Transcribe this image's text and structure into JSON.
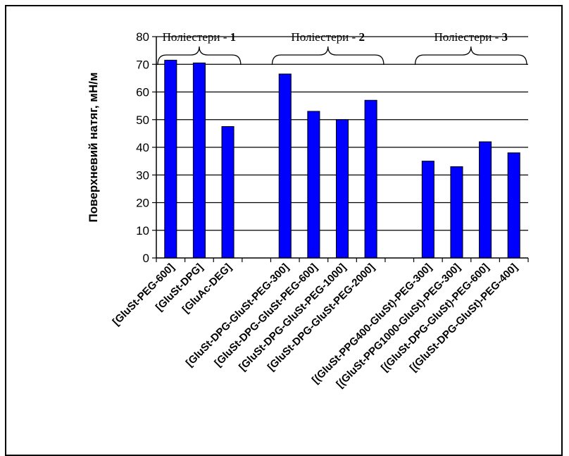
{
  "chart_data": {
    "type": "bar",
    "ylabel": "Поверхневий натяг, мН/м",
    "xlabel": "",
    "ylim": [
      0,
      80
    ],
    "yticks": [
      0,
      10,
      20,
      30,
      40,
      50,
      60,
      70,
      80
    ],
    "grid": "horizontal",
    "bar_color": "#0000ff",
    "categories": [
      "[GluSt-PEG-600]",
      "[GluSt-DPG]",
      "[GluAc-DEG]",
      "",
      "[GluSt-DPG-GluSt-PEG-300]",
      "[GluSt-DPG-GluSt-PEG-600]",
      "[GluSt-DPG-GluSt-PEG-1000]",
      "[GluSt-DPG-GluSt-PEG-2000]",
      "",
      "[(GluSt-PPG400-GluSt)-PEG-300]",
      "[(GluSt-PPG1000-GluSt)-PEG-300]",
      "[(GluSt-DPG-GluSt)-PEG-600]",
      "[(GluSt-DPG-GluSt)-PEG-400]"
    ],
    "values": [
      71.5,
      70.5,
      47.5,
      null,
      66.5,
      53,
      50,
      57,
      null,
      35,
      33,
      42,
      38
    ],
    "groups": [
      {
        "label": "Поліестери - ",
        "number": "1",
        "from": 0,
        "to": 2
      },
      {
        "label": "Поліестери - ",
        "number": "2",
        "from": 4,
        "to": 7
      },
      {
        "label": "Поліестери - ",
        "number": "3",
        "from": 9,
        "to": 12
      }
    ]
  }
}
